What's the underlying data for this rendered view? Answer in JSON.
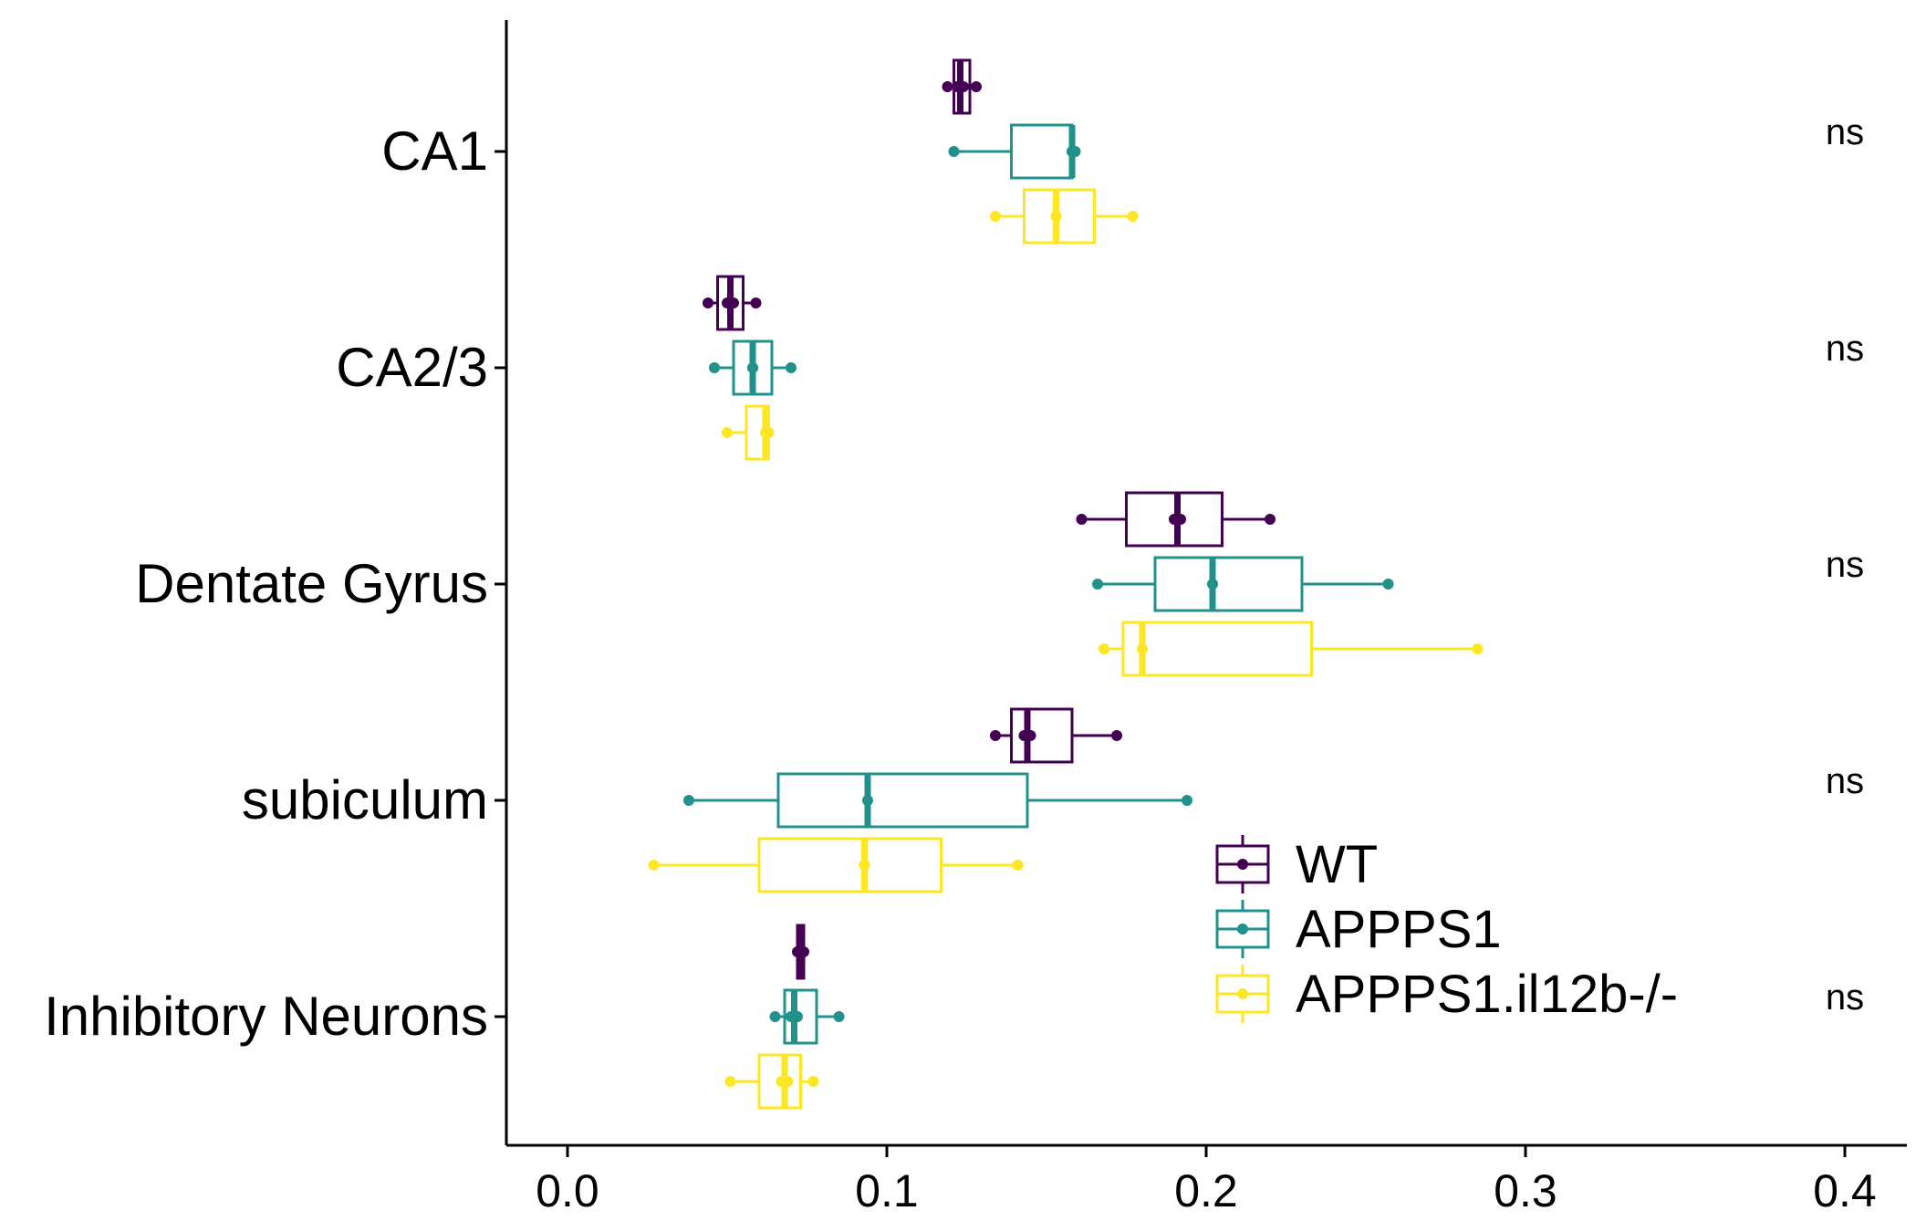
{
  "chart_data": {
    "type": "boxplot",
    "orientation": "horizontal",
    "title": "",
    "xlabel": "",
    "ylabel": "",
    "xlim": [
      -0.02,
      0.42
    ],
    "x_ticks": [
      "0.0",
      "0.1",
      "0.2",
      "0.3",
      "0.4"
    ],
    "x_tick_values": [
      0,
      0.1,
      0.2,
      0.3,
      0.4
    ],
    "legend_placement": "bottom-right-inside",
    "categories": [
      "CA1",
      "CA2/3",
      "Dentate Gyrus",
      "subiculum",
      "Inhibitory Neurons"
    ],
    "series": [
      {
        "name": "WT",
        "color": "#440154",
        "boxes": [
          {
            "category": "CA1",
            "q1": 0.121,
            "median": 0.123,
            "q3": 0.126,
            "whisker_low": 0.119,
            "whisker_high": 0.128,
            "points": [
              0.119,
              0.122,
              0.124,
              0.128
            ]
          },
          {
            "category": "CA2/3",
            "q1": 0.047,
            "median": 0.051,
            "q3": 0.055,
            "whisker_low": 0.044,
            "whisker_high": 0.059,
            "points": [
              0.044,
              0.05,
              0.052,
              0.059
            ]
          },
          {
            "category": "Dentate Gyrus",
            "q1": 0.175,
            "median": 0.191,
            "q3": 0.205,
            "whisker_low": 0.161,
            "whisker_high": 0.22,
            "points": [
              0.161,
              0.19,
              0.192,
              0.22
            ]
          },
          {
            "category": "subiculum",
            "q1": 0.139,
            "median": 0.144,
            "q3": 0.158,
            "whisker_low": 0.134,
            "whisker_high": 0.172,
            "points": [
              0.134,
              0.143,
              0.145,
              0.172
            ]
          },
          {
            "category": "Inhibitory Neurons",
            "q1": 0.072,
            "median": 0.073,
            "q3": 0.074,
            "whisker_low": 0.072,
            "whisker_high": 0.074,
            "points": [
              0.072,
              0.073,
              0.073,
              0.074
            ]
          }
        ]
      },
      {
        "name": "APPPS1",
        "color": "#21918c",
        "boxes": [
          {
            "category": "CA1",
            "q1": 0.139,
            "median": 0.158,
            "q3": 0.158,
            "whisker_low": 0.121,
            "whisker_high": 0.159,
            "points": [
              0.121,
              0.158,
              0.158,
              0.159
            ]
          },
          {
            "category": "CA2/3",
            "q1": 0.052,
            "median": 0.058,
            "q3": 0.064,
            "whisker_low": 0.046,
            "whisker_high": 0.07,
            "points": [
              0.046,
              0.058,
              0.058,
              0.07
            ]
          },
          {
            "category": "Dentate Gyrus",
            "q1": 0.184,
            "median": 0.202,
            "q3": 0.23,
            "whisker_low": 0.166,
            "whisker_high": 0.257,
            "points": [
              0.166,
              0.202,
              0.257
            ]
          },
          {
            "category": "subiculum",
            "q1": 0.066,
            "median": 0.094,
            "q3": 0.144,
            "whisker_low": 0.038,
            "whisker_high": 0.194,
            "points": [
              0.038,
              0.094,
              0.194
            ]
          },
          {
            "category": "Inhibitory Neurons",
            "q1": 0.068,
            "median": 0.071,
            "q3": 0.078,
            "whisker_low": 0.065,
            "whisker_high": 0.085,
            "points": [
              0.065,
              0.07,
              0.072,
              0.085
            ]
          }
        ]
      },
      {
        "name": "APPPS1.il12b-/-",
        "color": "#fde725",
        "boxes": [
          {
            "category": "CA1",
            "q1": 0.143,
            "median": 0.153,
            "q3": 0.165,
            "whisker_low": 0.134,
            "whisker_high": 0.177,
            "points": [
              0.134,
              0.153,
              0.177
            ]
          },
          {
            "category": "CA2/3",
            "q1": 0.056,
            "median": 0.062,
            "q3": 0.063,
            "whisker_low": 0.05,
            "whisker_high": 0.063,
            "points": [
              0.05,
              0.062,
              0.063
            ]
          },
          {
            "category": "Dentate Gyrus",
            "q1": 0.174,
            "median": 0.18,
            "q3": 0.233,
            "whisker_low": 0.168,
            "whisker_high": 0.285,
            "points": [
              0.168,
              0.18,
              0.285
            ]
          },
          {
            "category": "subiculum",
            "q1": 0.06,
            "median": 0.093,
            "q3": 0.117,
            "whisker_low": 0.027,
            "whisker_high": 0.141,
            "points": [
              0.027,
              0.093,
              0.141
            ]
          },
          {
            "category": "Inhibitory Neurons",
            "q1": 0.06,
            "median": 0.068,
            "q3": 0.073,
            "whisker_low": 0.051,
            "whisker_high": 0.077,
            "points": [
              0.051,
              0.067,
              0.069,
              0.077
            ]
          }
        ]
      }
    ],
    "annotations": [
      "ns",
      "ns",
      "ns",
      "ns",
      "ns"
    ]
  }
}
